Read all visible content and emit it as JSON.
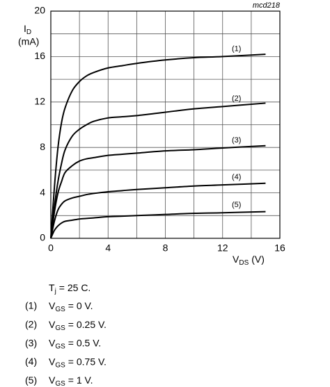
{
  "chart_data": {
    "type": "line",
    "code": "mcd218",
    "ylabel": {
      "main": "I",
      "sub": "D",
      "unit": "(mA)"
    },
    "xlabel": {
      "main": "V",
      "sub": "DS",
      "unit": "(V)"
    },
    "x": [
      0,
      0.25,
      0.5,
      0.75,
      1,
      1.5,
      2,
      2.5,
      3,
      4,
      5,
      6,
      8,
      10,
      12,
      15
    ],
    "series": [
      {
        "name": "(1)",
        "color": "#000000",
        "values": [
          0,
          4.5,
          8,
          10.2,
          11.5,
          13,
          13.8,
          14.3,
          14.6,
          15,
          15.2,
          15.4,
          15.7,
          15.9,
          16.0,
          16.2
        ]
      },
      {
        "name": "(2)",
        "color": "#000000",
        "values": [
          0,
          2.8,
          5,
          6.6,
          7.8,
          9,
          9.6,
          10,
          10.3,
          10.6,
          10.7,
          10.8,
          11.1,
          11.4,
          11.6,
          11.9
        ]
      },
      {
        "name": "(3)",
        "color": "#000000",
        "values": [
          0,
          2.3,
          4,
          5,
          5.8,
          6.4,
          6.8,
          7,
          7.1,
          7.3,
          7.4,
          7.5,
          7.7,
          7.8,
          7.95,
          8.15
        ]
      },
      {
        "name": "(4)",
        "color": "#000000",
        "values": [
          0,
          1.5,
          2.5,
          3,
          3.3,
          3.55,
          3.7,
          3.85,
          3.95,
          4.1,
          4.2,
          4.3,
          4.45,
          4.6,
          4.7,
          4.85
        ]
      },
      {
        "name": "(5)",
        "color": "#000000",
        "values": [
          0,
          0.7,
          1.1,
          1.35,
          1.5,
          1.6,
          1.7,
          1.75,
          1.8,
          1.9,
          1.95,
          2.0,
          2.1,
          2.2,
          2.25,
          2.35
        ]
      }
    ],
    "xlim": [
      0,
      16
    ],
    "ylim": [
      0,
      20
    ],
    "xticks": [
      0,
      4,
      8,
      12,
      16
    ],
    "yticks": [
      0,
      4,
      8,
      12,
      16,
      20
    ],
    "xgrid": [
      0,
      2,
      4,
      6,
      8,
      10,
      12,
      14,
      16
    ],
    "ygrid": [
      0,
      2,
      4,
      6,
      8,
      10,
      12,
      14,
      16,
      18,
      20
    ],
    "grid": true
  },
  "notes": {
    "temperature": {
      "main": "T",
      "sub": "j",
      "text": "= 25   C."
    },
    "conditions": [
      {
        "main": "V",
        "sub": "GS",
        "text": "= 0 V."
      },
      {
        "main": "V",
        "sub": "GS",
        "text": "=   0.25 V."
      },
      {
        "main": "V",
        "sub": "GS",
        "text": "=   0.5 V."
      },
      {
        "main": "V",
        "sub": "GS",
        "text": "=   0.75 V."
      },
      {
        "main": "V",
        "sub": "GS",
        "text": "=   1 V."
      }
    ]
  }
}
